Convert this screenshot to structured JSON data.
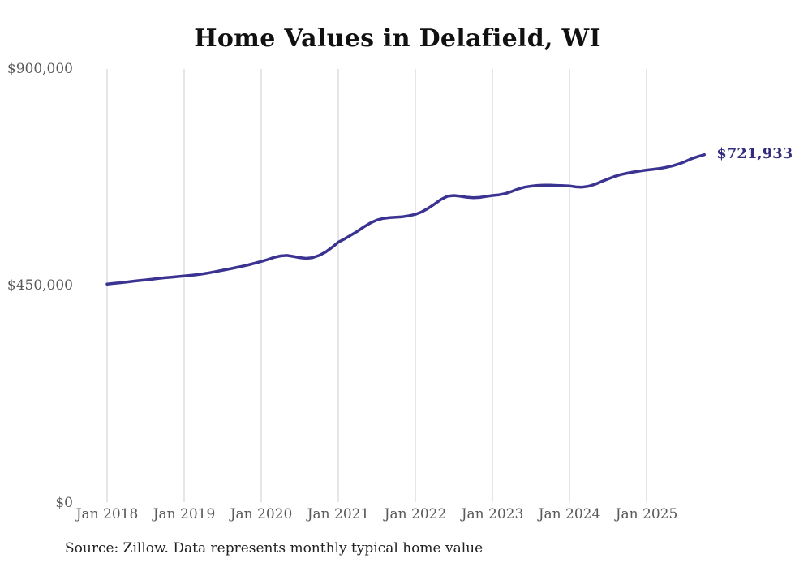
{
  "chart_data": {
    "type": "line",
    "title": "Home Values in Delafield, WI",
    "source": "Source: Zillow. Data represents monthly typical home value",
    "end_label": "$721,933",
    "latest_value": 721933,
    "frequency": "monthly",
    "x_start_month": "Jan 2018",
    "x_tick_labels": [
      "Jan 2018",
      "Jan 2019",
      "Jan 2020",
      "Jan 2021",
      "Jan 2022",
      "Jan 2023",
      "Jan 2024",
      "Jan 2025"
    ],
    "y_tick_labels": [
      "$900,000",
      "$450,000",
      "$0"
    ],
    "y_ticks": [
      900000,
      450000,
      0
    ],
    "ylim": [
      0,
      900000
    ],
    "grid": "vertical-only",
    "line_color": "#3a3391",
    "label_color": "#322e7d",
    "grid_color": "#cccccc",
    "axis_text_color": "#595959",
    "values": [
      453000,
      454400,
      455800,
      457200,
      458700,
      460200,
      461700,
      463200,
      464700,
      466100,
      467300,
      468500,
      469800,
      471000,
      472500,
      474400,
      476700,
      479200,
      481800,
      484400,
      487000,
      490000,
      493000,
      496500,
      500000,
      504000,
      508500,
      511500,
      512500,
      510500,
      508000,
      506500,
      508000,
      512500,
      519500,
      529000,
      540000,
      547000,
      555000,
      563000,
      572000,
      580000,
      586000,
      589500,
      591000,
      592000,
      593000,
      595000,
      598000,
      603000,
      610500,
      619500,
      629000,
      635500,
      637000,
      635500,
      633500,
      632500,
      633000,
      635000,
      637000,
      638500,
      641000,
      645500,
      650500,
      654500,
      656500,
      658000,
      658500,
      658500,
      658000,
      657500,
      657000,
      655000,
      654500,
      656500,
      660500,
      666000,
      671500,
      676500,
      680500,
      683500,
      686000,
      688000,
      690000,
      691500,
      693000,
      695500,
      698500,
      702500,
      707500,
      713500,
      718000,
      721933
    ]
  }
}
